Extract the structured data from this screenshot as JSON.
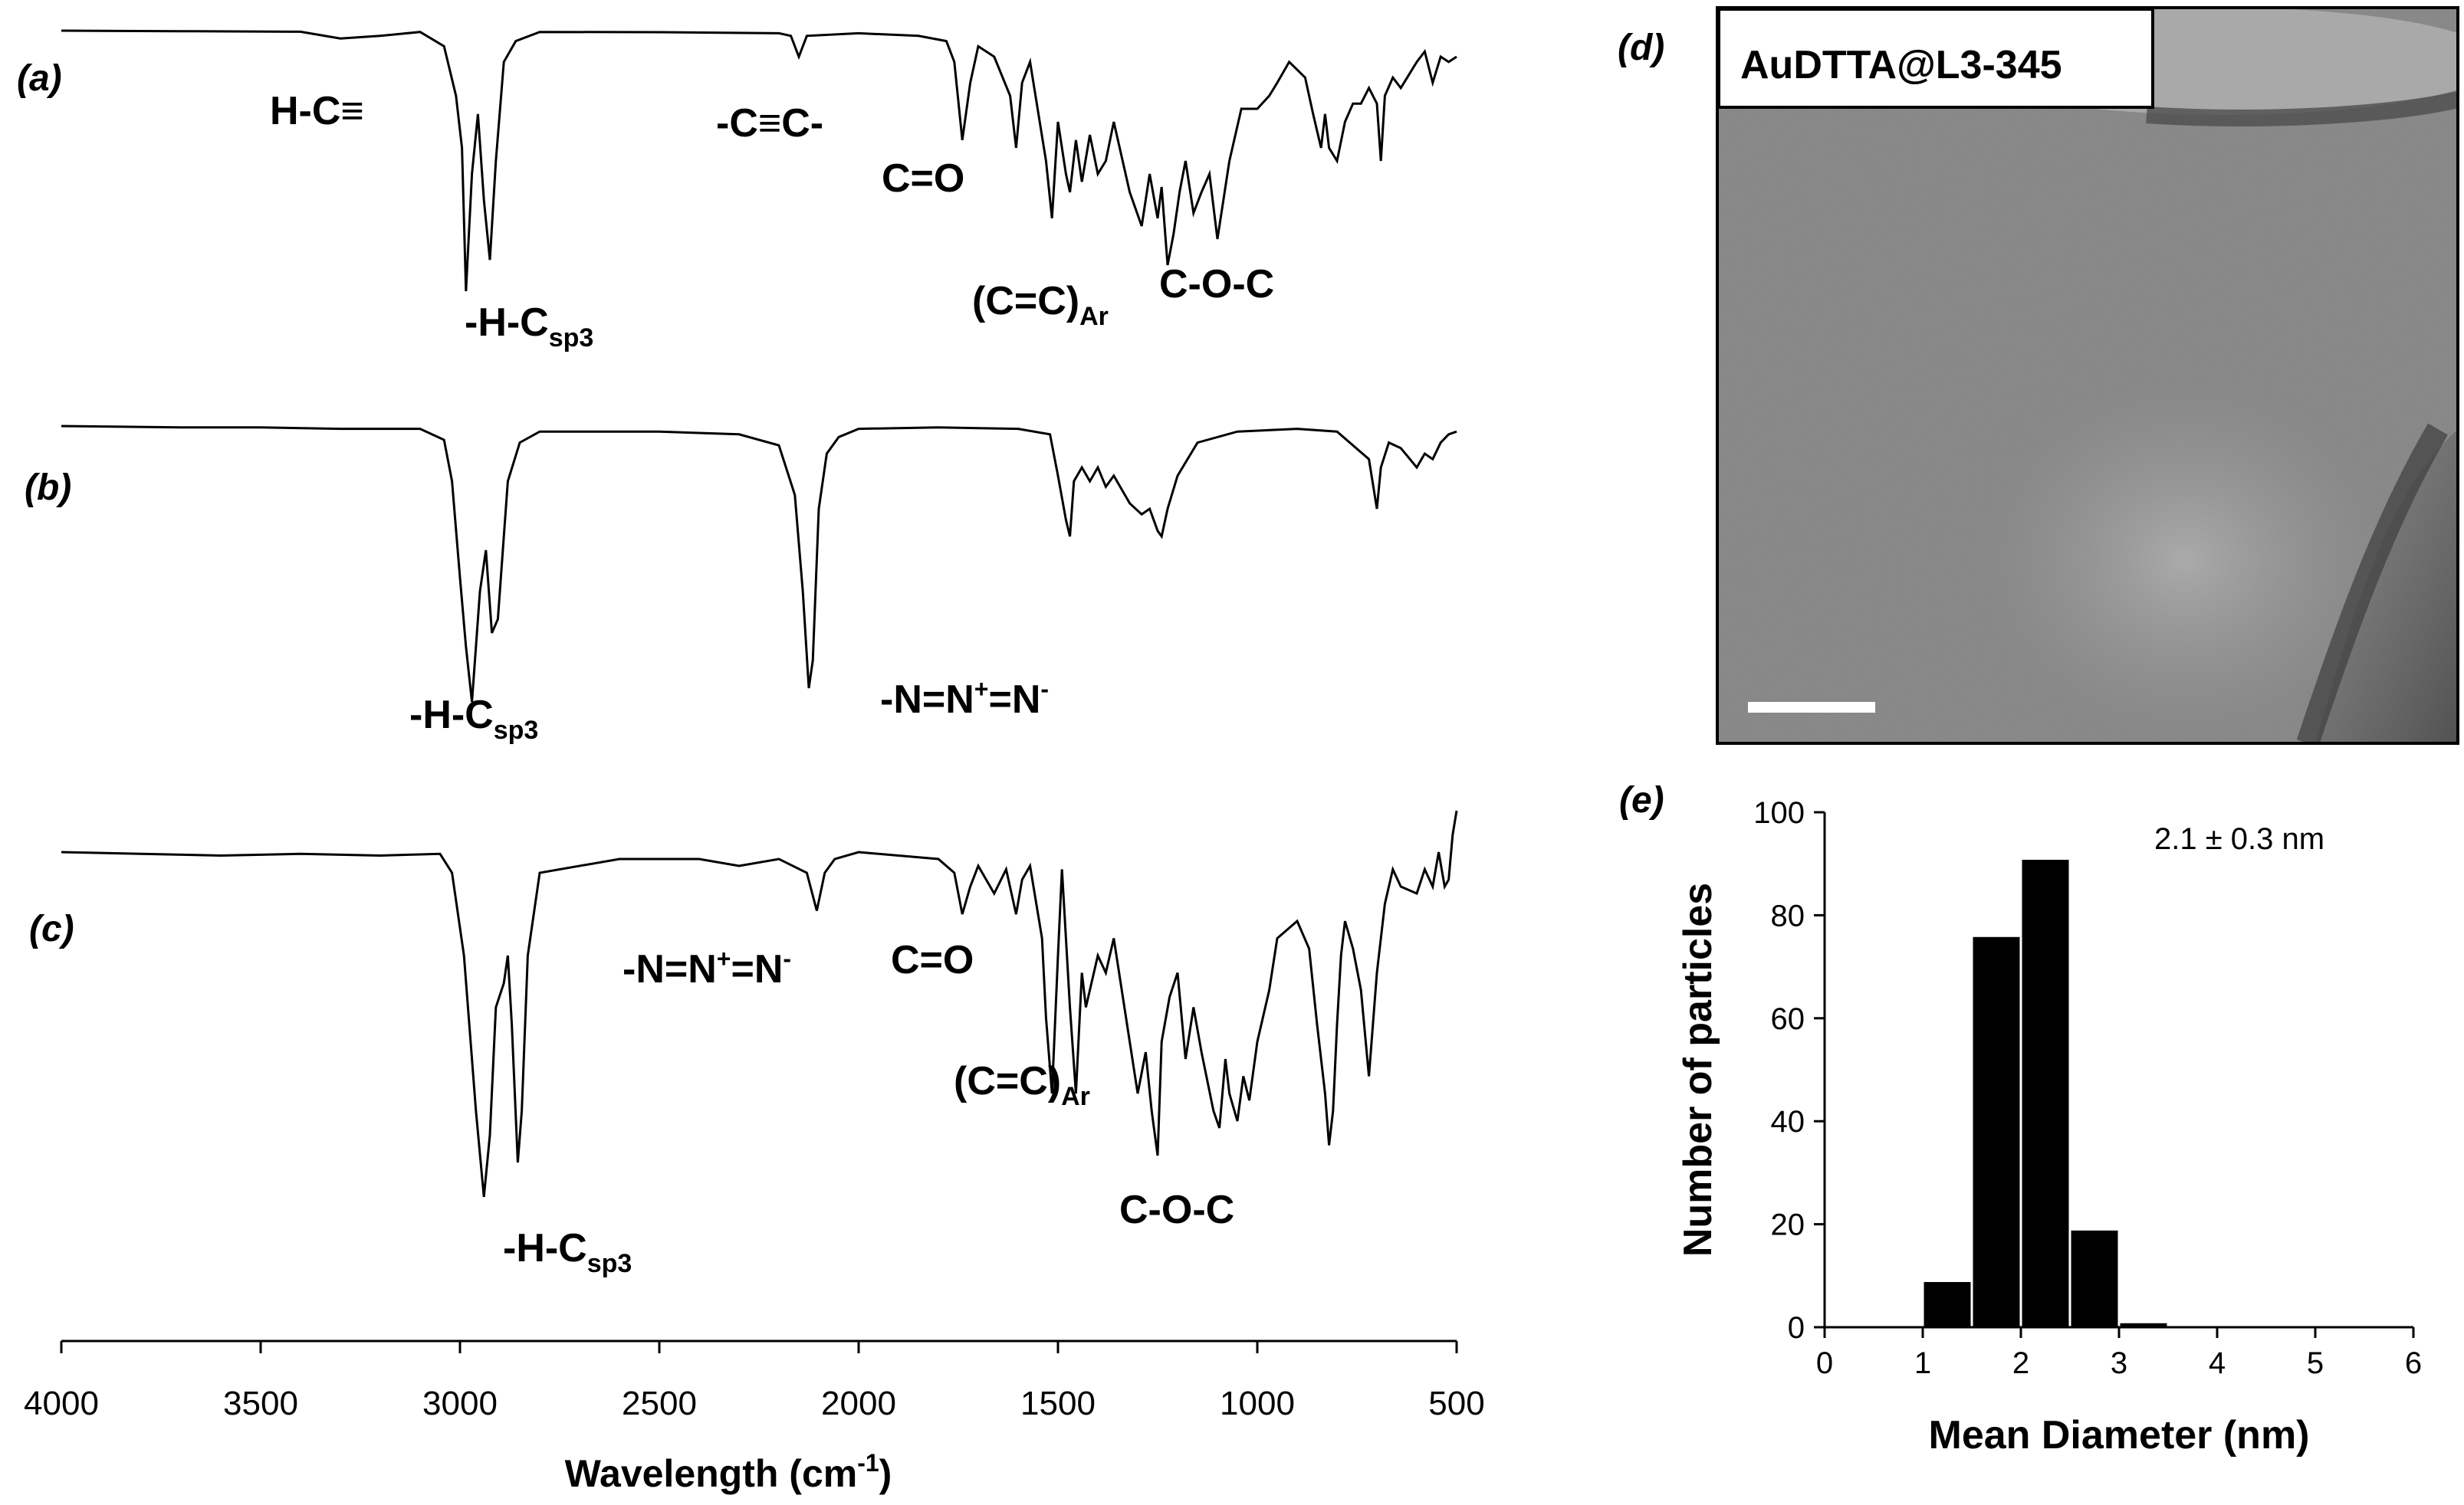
{
  "figure": {
    "panel_labels": {
      "a": "(a)",
      "b": "(b)",
      "c": "(c)",
      "d": "(d)",
      "e": "(e)"
    },
    "ir_peak_labels": {
      "a": [
        {
          "main": "H-C≡",
          "sub": "",
          "sup": "",
          "tail": ""
        },
        {
          "main": "-H-C",
          "sub": "sp3",
          "sup": "",
          "tail": ""
        },
        {
          "main": "-C≡C-",
          "sub": "",
          "sup": "",
          "tail": ""
        },
        {
          "main": "C=O",
          "sub": "",
          "sup": "",
          "tail": ""
        },
        {
          "main": "(C=C)",
          "sub": "Ar",
          "sup": "",
          "tail": ""
        },
        {
          "main": "C-O-C",
          "sub": "",
          "sup": "",
          "tail": ""
        }
      ],
      "b": [
        {
          "main": "-H-C",
          "sub": "sp3",
          "sup": "",
          "tail": ""
        },
        {
          "main": "-N=N",
          "sub": "",
          "sup": "+",
          "tail": "=N",
          "sup2": "-"
        }
      ],
      "c": [
        {
          "main": "-N=N",
          "sub": "",
          "sup": "+",
          "tail": "=N",
          "sup2": "-"
        },
        {
          "main": "C=O",
          "sub": "",
          "sup": "",
          "tail": ""
        },
        {
          "main": "-H-C",
          "sub": "sp3",
          "sup": "",
          "tail": ""
        },
        {
          "main": "(C=C)",
          "sub": "Ar",
          "sup": "",
          "tail": ""
        },
        {
          "main": "C-O-C",
          "sub": "",
          "sup": "",
          "tail": ""
        }
      ]
    },
    "tem": {
      "sample_label": "AuDTTA@L3-345"
    }
  },
  "chart_data": [
    {
      "type": "line",
      "title": "",
      "xlabel": "Wavelength (cm",
      "xlabel_sup": "-1",
      "xlabel_tail": ")",
      "ylabel": "",
      "xlim": [
        4000,
        500
      ],
      "xticks": [
        4000,
        3500,
        3000,
        2500,
        2000,
        1500,
        1000,
        500
      ],
      "xtick_labels": [
        "4000",
        "3500",
        "3000",
        "2500",
        "2000",
        "1500",
        "1000",
        "500"
      ],
      "series": [
        {
          "name": "(a)",
          "x": [
            4000,
            3700,
            3400,
            3300,
            3200,
            3100,
            3040,
            3010,
            2995,
            2985,
            2970,
            2955,
            2940,
            2925,
            2910,
            2890,
            2860,
            2800,
            2500,
            2200,
            2170,
            2150,
            2130,
            2000,
            1850,
            1780,
            1760,
            1740,
            1720,
            1700,
            1660,
            1620,
            1605,
            1590,
            1570,
            1530,
            1515,
            1500,
            1480,
            1470,
            1455,
            1440,
            1420,
            1400,
            1380,
            1360,
            1320,
            1290,
            1270,
            1250,
            1240,
            1225,
            1210,
            1195,
            1180,
            1160,
            1140,
            1120,
            1100,
            1085,
            1070,
            1040,
            1000,
            970,
            950,
            920,
            880,
            860,
            840,
            830,
            820,
            800,
            780,
            760,
            740,
            720,
            700,
            690,
            680,
            660,
            640,
            600,
            580,
            560,
            540,
            520,
            500
          ],
          "y": [
            0,
            0.002,
            0.004,
            0.03,
            0.02,
            0.005,
            0.06,
            0.25,
            0.45,
            1.0,
            0.55,
            0.32,
            0.65,
            0.88,
            0.5,
            0.12,
            0.04,
            0.005,
            0.006,
            0.01,
            0.02,
            0.1,
            0.02,
            0.01,
            0.02,
            0.04,
            0.12,
            0.42,
            0.2,
            0.06,
            0.1,
            0.25,
            0.45,
            0.2,
            0.12,
            0.5,
            0.72,
            0.35,
            0.55,
            0.62,
            0.42,
            0.58,
            0.4,
            0.55,
            0.5,
            0.35,
            0.62,
            0.75,
            0.55,
            0.72,
            0.6,
            0.9,
            0.78,
            0.62,
            0.5,
            0.7,
            0.62,
            0.55,
            0.8,
            0.65,
            0.5,
            0.3,
            0.3,
            0.25,
            0.2,
            0.12,
            0.18,
            0.32,
            0.45,
            0.32,
            0.45,
            0.5,
            0.35,
            0.28,
            0.28,
            0.22,
            0.28,
            0.5,
            0.25,
            0.18,
            0.22,
            0.12,
            0.08,
            0.2,
            0.1,
            0.12,
            0.1
          ]
        },
        {
          "name": "(b)",
          "x": [
            4000,
            3700,
            3500,
            3300,
            3100,
            3040,
            3020,
            3000,
            2985,
            2970,
            2950,
            2935,
            2920,
            2905,
            2880,
            2850,
            2800,
            2500,
            2300,
            2200,
            2160,
            2140,
            2125,
            2115,
            2100,
            2080,
            2050,
            2000,
            1800,
            1600,
            1520,
            1500,
            1480,
            1470,
            1460,
            1440,
            1420,
            1400,
            1380,
            1360,
            1320,
            1290,
            1270,
            1250,
            1240,
            1225,
            1200,
            1150,
            1050,
            900,
            800,
            720,
            700,
            690,
            670,
            640,
            600,
            580,
            560,
            540,
            520,
            500
          ],
          "y": [
            0,
            0.005,
            0.005,
            0.01,
            0.01,
            0.05,
            0.2,
            0.55,
            0.8,
            1.0,
            0.6,
            0.45,
            0.75,
            0.7,
            0.2,
            0.06,
            0.02,
            0.02,
            0.03,
            0.07,
            0.25,
            0.6,
            0.95,
            0.85,
            0.3,
            0.1,
            0.04,
            0.01,
            0.005,
            0.01,
            0.03,
            0.18,
            0.34,
            0.4,
            0.2,
            0.15,
            0.2,
            0.15,
            0.22,
            0.18,
            0.28,
            0.32,
            0.3,
            0.38,
            0.4,
            0.3,
            0.18,
            0.06,
            0.02,
            0.01,
            0.02,
            0.12,
            0.3,
            0.15,
            0.06,
            0.08,
            0.15,
            0.1,
            0.12,
            0.06,
            0.03,
            0.02
          ]
        },
        {
          "name": "(c)",
          "x": [
            4000,
            3800,
            3600,
            3400,
            3200,
            3050,
            3020,
            2990,
            2960,
            2940,
            2925,
            2910,
            2890,
            2880,
            2870,
            2855,
            2845,
            2830,
            2800,
            2600,
            2400,
            2300,
            2200,
            2130,
            2105,
            2085,
            2060,
            2000,
            1900,
            1800,
            1760,
            1740,
            1720,
            1700,
            1660,
            1630,
            1605,
            1590,
            1570,
            1540,
            1530,
            1515,
            1500,
            1490,
            1470,
            1455,
            1440,
            1430,
            1420,
            1400,
            1380,
            1360,
            1320,
            1300,
            1280,
            1265,
            1250,
            1240,
            1220,
            1200,
            1180,
            1160,
            1140,
            1110,
            1095,
            1080,
            1070,
            1050,
            1035,
            1020,
            1000,
            970,
            950,
            900,
            870,
            850,
            830,
            820,
            810,
            800,
            790,
            780,
            760,
            740,
            720,
            700,
            680,
            660,
            640,
            600,
            580,
            560,
            545,
            530,
            520,
            510,
            500
          ],
          "y": [
            0,
            0.005,
            0.01,
            0.005,
            0.01,
            0.005,
            0.06,
            0.3,
            0.75,
            1.0,
            0.82,
            0.45,
            0.38,
            0.3,
            0.5,
            0.9,
            0.75,
            0.3,
            0.06,
            0.02,
            0.02,
            0.04,
            0.02,
            0.06,
            0.17,
            0.06,
            0.02,
            0.0,
            0.01,
            0.02,
            0.06,
            0.18,
            0.1,
            0.04,
            0.12,
            0.05,
            0.18,
            0.08,
            0.04,
            0.25,
            0.48,
            0.7,
            0.3,
            0.05,
            0.45,
            0.7,
            0.35,
            0.45,
            0.4,
            0.3,
            0.35,
            0.25,
            0.55,
            0.7,
            0.58,
            0.75,
            0.88,
            0.55,
            0.42,
            0.35,
            0.6,
            0.45,
            0.58,
            0.75,
            0.8,
            0.6,
            0.7,
            0.78,
            0.65,
            0.72,
            0.55,
            0.4,
            0.25,
            0.2,
            0.28,
            0.5,
            0.7,
            0.85,
            0.75,
            0.5,
            0.3,
            0.2,
            0.28,
            0.4,
            0.65,
            0.35,
            0.15,
            0.05,
            0.1,
            0.12,
            0.05,
            0.1,
            0.0,
            0.1,
            0.08,
            -0.05,
            -0.12
          ]
        }
      ]
    },
    {
      "type": "bar",
      "title": "",
      "xlabel": "Mean Diameter (nm)",
      "ylabel": "Number of particles",
      "xlim": [
        0,
        6
      ],
      "ylim": [
        0,
        100
      ],
      "xticks": [
        0,
        1,
        2,
        3,
        4,
        5,
        6
      ],
      "yticks": [
        0,
        20,
        40,
        60,
        80,
        100
      ],
      "categories": [
        "1.25",
        "1.75",
        "2.25",
        "2.75",
        "3.25"
      ],
      "bin_centers": [
        1.25,
        1.75,
        2.25,
        2.75,
        3.25
      ],
      "bin_width": 0.5,
      "values": [
        9,
        76,
        91,
        19,
        1
      ],
      "annotation": "2.1  ± 0.3 nm"
    }
  ]
}
